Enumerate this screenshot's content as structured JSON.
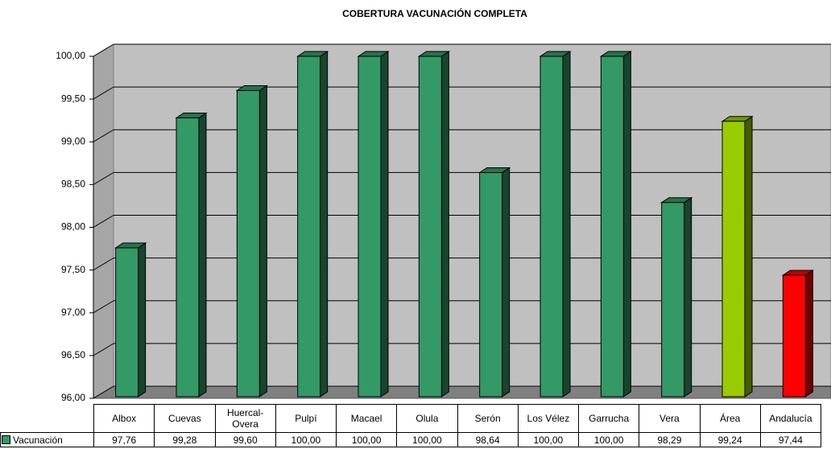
{
  "chart_data": {
    "type": "bar3d",
    "title": "COBERTURA VACUNACIÓN COMPLETA",
    "categories": [
      "Albox",
      "Cuevas",
      "Huercal-Overa",
      "Pulpí",
      "Macael",
      "Olula",
      "Serón",
      "Los Vélez",
      "Garrucha",
      "Vera",
      "Área",
      "Andalucía"
    ],
    "series": [
      {
        "name": "Vacunación",
        "color": "#339966",
        "colors": [
          "#339966",
          "#339966",
          "#339966",
          "#339966",
          "#339966",
          "#339966",
          "#339966",
          "#339966",
          "#339966",
          "#339966",
          "#99cc00",
          "#ff0000"
        ],
        "values": [
          97.76,
          99.28,
          99.6,
          100,
          100,
          100,
          98.64,
          100,
          100,
          98.29,
          99.24,
          97.44
        ],
        "value_labels": [
          "97,76",
          "99,28",
          "99,60",
          "100,00",
          "100,00",
          "100,00",
          "98,64",
          "100,00",
          "100,00",
          "98,29",
          "99,24",
          "97,44"
        ]
      }
    ],
    "ylim": [
      96,
      100
    ],
    "yticks": [
      {
        "value": 96,
        "label": "96,00"
      },
      {
        "value": 96.5,
        "label": "96,50"
      },
      {
        "value": 97,
        "label": "97,00"
      },
      {
        "value": 97.5,
        "label": "97,50"
      },
      {
        "value": 98,
        "label": "98,00"
      },
      {
        "value": 98.5,
        "label": "98,50"
      },
      {
        "value": 99,
        "label": "99,00"
      },
      {
        "value": 99.5,
        "label": "99,50"
      },
      {
        "value": 100,
        "label": "100,00"
      }
    ],
    "grid": true
  }
}
